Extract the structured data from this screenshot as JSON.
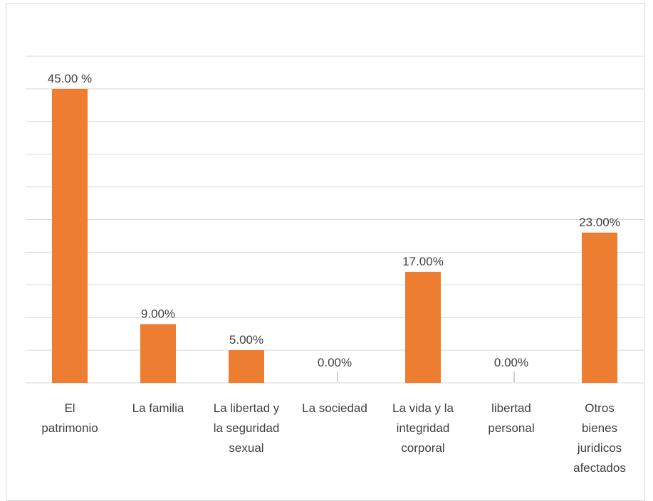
{
  "chart_data": {
    "type": "bar",
    "title": "",
    "xlabel": "",
    "ylabel": "",
    "ylim": [
      0,
      50
    ],
    "grid": true,
    "legend": "none",
    "bar_color": "#ED7D31",
    "grid_color": "#d9d9d9",
    "categories": [
      {
        "lines": [
          "El",
          "patrimonio"
        ]
      },
      {
        "lines": [
          "La familia"
        ]
      },
      {
        "lines": [
          "La libertad y",
          "la seguridad",
          "sexual"
        ]
      },
      {
        "lines": [
          "La sociedad"
        ]
      },
      {
        "lines": [
          "La vida y la",
          "integridad",
          "corporal"
        ]
      },
      {
        "lines": [
          "libertad",
          "personal"
        ]
      },
      {
        "lines": [
          "Otros",
          "bienes",
          "juridicos",
          "afectados"
        ]
      }
    ],
    "values": [
      45,
      9,
      5,
      0,
      17,
      0,
      23
    ],
    "data_labels": [
      "45.00 %",
      "9.00%",
      "5.00%",
      "0.00%",
      "17.00%",
      "0.00%",
      "23.00%"
    ]
  }
}
